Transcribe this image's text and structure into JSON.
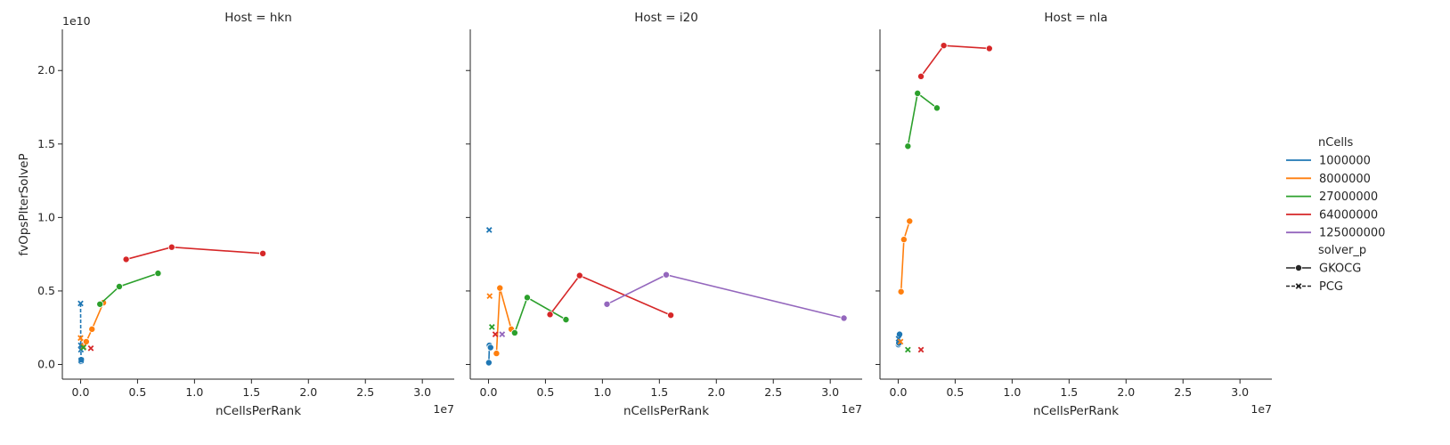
{
  "chart_data": {
    "type": "line",
    "facet": "Host",
    "panels": [
      {
        "title": "Host = hkn",
        "series": [
          {
            "nCells": "1000000",
            "solver_p": "GKOCG",
            "points": [
              [
                10000,
                180000000
              ],
              [
                30000,
                230000000
              ],
              [
                60000,
                320000000
              ]
            ]
          },
          {
            "nCells": "1000000",
            "solver_p": "PCG",
            "points": [
              [
                0,
                4150000000
              ],
              [
                20000,
                1300000000
              ],
              [
                30000,
                1000000000
              ],
              [
                50000,
                280000000
              ]
            ]
          },
          {
            "nCells": "8000000",
            "solver_p": "GKOCG",
            "points": [
              [
                500000,
                1550000000
              ],
              [
                1000000,
                2400000000
              ],
              [
                2000000,
                4200000000
              ]
            ]
          },
          {
            "nCells": "8000000",
            "solver_p": "PCG",
            "points": [
              [
                0,
                1800000000
              ],
              [
                250000,
                1200000000
              ]
            ]
          },
          {
            "nCells": "27000000",
            "solver_p": "GKOCG",
            "points": [
              [
                1700000,
                4100000000
              ],
              [
                3400000,
                5300000000
              ],
              [
                6800000,
                6200000000
              ]
            ]
          },
          {
            "nCells": "27000000",
            "solver_p": "PCG",
            "points": [
              [
                250000,
                1150000000
              ]
            ]
          },
          {
            "nCells": "64000000",
            "solver_p": "GKOCG",
            "points": [
              [
                4000000,
                7150000000
              ],
              [
                8000000,
                7980000000
              ],
              [
                16000000,
                7550000000
              ]
            ]
          },
          {
            "nCells": "64000000",
            "solver_p": "PCG",
            "points": [
              [
                900000,
                1100000000
              ]
            ]
          }
        ]
      },
      {
        "title": "Host = i20",
        "series": [
          {
            "nCells": "1000000",
            "solver_p": "GKOCG",
            "points": [
              [
                30000,
                120000000
              ],
              [
                80000,
                1300000000
              ],
              [
                180000,
                1150000000
              ]
            ]
          },
          {
            "nCells": "1000000",
            "solver_p": "PCG",
            "points": [
              [
                60000,
                9150000000
              ]
            ]
          },
          {
            "nCells": "8000000",
            "solver_p": "GKOCG",
            "points": [
              [
                700000,
                750000000
              ],
              [
                1000000,
                5200000000
              ],
              [
                2000000,
                2400000000
              ]
            ]
          },
          {
            "nCells": "8000000",
            "solver_p": "PCG",
            "points": [
              [
                100000,
                4650000000
              ]
            ]
          },
          {
            "nCells": "27000000",
            "solver_p": "GKOCG",
            "points": [
              [
                2300000,
                2150000000
              ],
              [
                3400000,
                4550000000
              ],
              [
                6800000,
                3050000000
              ]
            ]
          },
          {
            "nCells": "27000000",
            "solver_p": "PCG",
            "points": [
              [
                300000,
                2550000000
              ]
            ]
          },
          {
            "nCells": "64000000",
            "solver_p": "GKOCG",
            "points": [
              [
                5400000,
                3400000000
              ],
              [
                8000000,
                6050000000
              ],
              [
                16000000,
                3350000000
              ]
            ]
          },
          {
            "nCells": "64000000",
            "solver_p": "PCG",
            "points": [
              [
                600000,
                2050000000
              ]
            ]
          },
          {
            "nCells": "125000000",
            "solver_p": "GKOCG",
            "points": [
              [
                10400000,
                4100000000
              ],
              [
                15600000,
                6100000000
              ],
              [
                31200000,
                3150000000
              ]
            ]
          },
          {
            "nCells": "125000000",
            "solver_p": "PCG",
            "points": [
              [
                1200000,
                2050000000
              ]
            ]
          }
        ]
      },
      {
        "title": "Host = nla",
        "series": [
          {
            "nCells": "1000000",
            "solver_p": "GKOCG",
            "points": [
              [
                20000,
                1350000000
              ],
              [
                60000,
                1450000000
              ],
              [
                120000,
                2050000000
              ]
            ]
          },
          {
            "nCells": "1000000",
            "solver_p": "PCG",
            "points": [
              [
                30000,
                1750000000
              ]
            ]
          },
          {
            "nCells": "8000000",
            "solver_p": "GKOCG",
            "points": [
              [
                250000,
                4950000000
              ],
              [
                500000,
                8500000000
              ],
              [
                1000000,
                9750000000
              ]
            ]
          },
          {
            "nCells": "8000000",
            "solver_p": "PCG",
            "points": [
              [
                200000,
                1550000000
              ]
            ]
          },
          {
            "nCells": "27000000",
            "solver_p": "GKOCG",
            "points": [
              [
                850000,
                14850000000
              ],
              [
                1700000,
                18450000000
              ],
              [
                3400000,
                17450000000
              ]
            ]
          },
          {
            "nCells": "27000000",
            "solver_p": "PCG",
            "points": [
              [
                850000,
                1000000000
              ]
            ]
          },
          {
            "nCells": "64000000",
            "solver_p": "GKOCG",
            "points": [
              [
                2000000,
                19600000000
              ],
              [
                4000000,
                21700000000
              ],
              [
                8000000,
                21500000000
              ]
            ]
          },
          {
            "nCells": "64000000",
            "solver_p": "PCG",
            "points": [
              [
                2000000,
                1000000000
              ]
            ]
          }
        ]
      }
    ],
    "xlabel": "nCellsPerRank",
    "ylabel": "fvOpsPIterSolveP",
    "x_offset_label": "1e7",
    "y_offset_label": "1e10",
    "xlim": [
      -1600000,
      32800000
    ],
    "ylim": [
      -1000000000,
      22800000000
    ],
    "x_ticks": [
      0,
      5000000,
      10000000,
      15000000,
      20000000,
      25000000,
      30000000
    ],
    "x_tick_labels": [
      "0.0",
      "0.5",
      "1.0",
      "1.5",
      "2.0",
      "2.5",
      "3.0"
    ],
    "y_ticks": [
      0,
      5000000000,
      10000000000,
      15000000000,
      20000000000
    ],
    "y_tick_labels": [
      "0.0",
      "0.5",
      "1.0",
      "1.5",
      "2.0"
    ],
    "grid": false,
    "legend": {
      "placement": "right",
      "hue_title": "nCells",
      "hue_entries": [
        {
          "label": "1000000",
          "color": "#1f77b4"
        },
        {
          "label": "8000000",
          "color": "#ff7f0e"
        },
        {
          "label": "27000000",
          "color": "#2ca02c"
        },
        {
          "label": "64000000",
          "color": "#d62728"
        },
        {
          "label": "125000000",
          "color": "#9467bd"
        }
      ],
      "style_title": "solver_p",
      "style_entries": [
        {
          "label": "GKOCG",
          "marker": "circle",
          "dash": "solid"
        },
        {
          "label": "PCG",
          "marker": "x",
          "dash": "dashed"
        }
      ]
    }
  }
}
